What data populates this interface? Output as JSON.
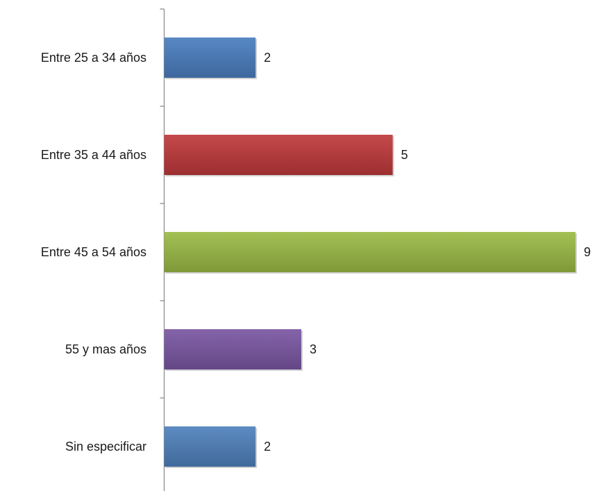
{
  "chart_data": {
    "type": "bar",
    "orientation": "horizontal",
    "categories": [
      "Entre 25 a 34 años",
      "Entre 35 a 44 años",
      "Entre 45 a 54 años",
      "55 y mas años",
      "Sin especificar"
    ],
    "values": [
      2,
      5,
      9,
      3,
      2
    ],
    "colors": [
      "#4a7ebf",
      "#c0393b",
      "#9bbb45",
      "#7a56a3",
      "#4f81bd"
    ],
    "value_labels": [
      "2",
      "5",
      "9",
      "3",
      "2"
    ],
    "xlim": [
      0,
      9
    ],
    "grid": false,
    "legend": "none"
  }
}
